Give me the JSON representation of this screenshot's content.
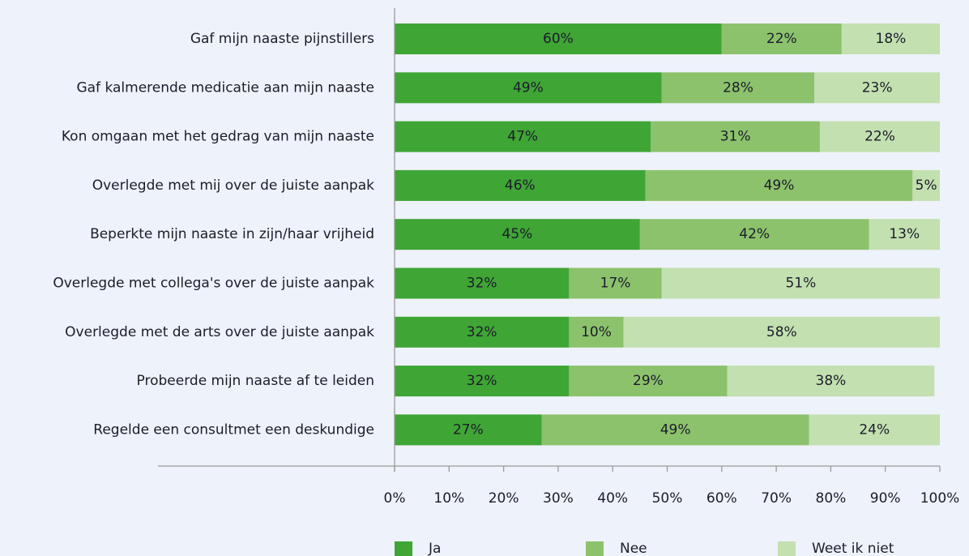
{
  "chart_data": {
    "type": "stacked-bar-horizontal",
    "categories": [
      "Gaf mijn naaste pijnstillers",
      "Gaf kalmerende medicatie aan mijn naaste",
      "Kon omgaan met het gedrag van mijn naaste",
      "Overlegde met mij over de juiste aanpak",
      "Beperkte mijn naaste in zijn/haar vrijheid",
      "Overlegde met collega's over de juiste aanpak",
      "Overlegde met de arts over de juiste aanpak",
      "Probeerde mijn naaste af te leiden",
      "Regelde een consultmet een deskundige"
    ],
    "series": [
      {
        "name": "Ja",
        "color": "#3fa535",
        "values": [
          60,
          49,
          47,
          46,
          45,
          32,
          32,
          32,
          27
        ],
        "value_labels": [
          "60%",
          "49%",
          "47%",
          "46%",
          "45%",
          "32%",
          "32%",
          "32%",
          "27%"
        ]
      },
      {
        "name": "Nee",
        "color": "#8cc26c",
        "values": [
          22,
          28,
          31,
          49,
          42,
          17,
          10,
          29,
          49
        ],
        "value_labels": [
          "22%",
          "28%",
          "31%",
          "49%",
          "42%",
          "17%",
          "10%",
          "29%",
          "49%"
        ]
      },
      {
        "name": "Weet ik niet",
        "color": "#c3e0b0",
        "values": [
          18,
          23,
          22,
          5,
          13,
          51,
          58,
          38,
          24
        ],
        "value_labels": [
          "18%",
          "23%",
          "22%",
          "5%",
          "13%",
          "51%",
          "58%",
          "38%",
          "24%"
        ]
      }
    ],
    "xlim": [
      0,
      100
    ],
    "xticks": [
      {
        "value": 0,
        "label": "0%"
      },
      {
        "value": 10,
        "label": "10%"
      },
      {
        "value": 20,
        "label": "20%"
      },
      {
        "value": 30,
        "label": "30%"
      },
      {
        "value": 40,
        "label": "40%"
      },
      {
        "value": 50,
        "label": "50%"
      },
      {
        "value": 60,
        "label": "60%"
      },
      {
        "value": 70,
        "label": "70%"
      },
      {
        "value": 80,
        "label": "80%"
      },
      {
        "value": 90,
        "label": "90%"
      },
      {
        "value": 100,
        "label": "100%"
      }
    ],
    "legend": "bottom"
  }
}
